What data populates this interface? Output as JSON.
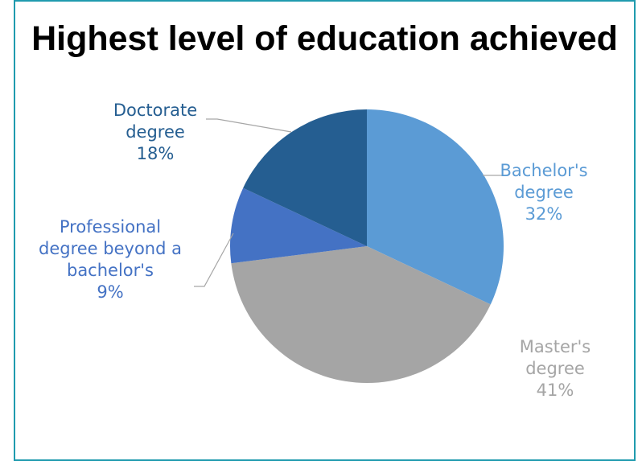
{
  "colors": {
    "frame": "#1f9bae",
    "leader": "#a6a6a6"
  },
  "chart_data": {
    "type": "pie",
    "title": "Highest level of education achieved",
    "start_angle_deg": 0,
    "direction": "clockwise",
    "slices": [
      {
        "category": "Bachelor's degree",
        "name_lines": [
          "Bachelor's",
          "degree"
        ],
        "value": 32,
        "label": "32%",
        "color": "#5b9bd5"
      },
      {
        "category": "Master's degree",
        "name_lines": [
          "Master's",
          "degree"
        ],
        "value": 41,
        "label": "41%",
        "color": "#a5a5a5"
      },
      {
        "category": "Professional degree beyond a bachelor's",
        "name_lines": [
          "Professional",
          "degree beyond a",
          "bachelor's"
        ],
        "value": 9,
        "label": "9%",
        "color": "#4472c4"
      },
      {
        "category": "Doctorate degree",
        "name_lines": [
          "Doctorate",
          "degree"
        ],
        "value": 18,
        "label": "18%",
        "color": "#255e91"
      }
    ]
  }
}
